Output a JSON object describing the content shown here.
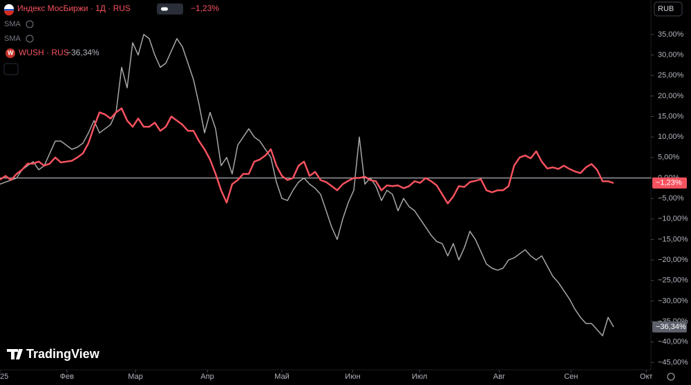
{
  "chart_data": {
    "type": "line",
    "title": "Индекс МосБиржи · 1Д · RUS",
    "indicators": [
      "SMA",
      "SMA"
    ],
    "currency": "RUB",
    "brand": "TradingView",
    "zero_line": true,
    "xlim": [
      0,
      117
    ],
    "xticks": [
      {
        "value": 0,
        "label": "25"
      },
      {
        "value": 12.1,
        "label": "Фев"
      },
      {
        "value": 24.5,
        "label": "Мар"
      },
      {
        "value": 37.5,
        "label": "Апр"
      },
      {
        "value": 51,
        "label": "Май"
      },
      {
        "value": 63.8,
        "label": "Июн"
      },
      {
        "value": 75.9,
        "label": "Июл"
      },
      {
        "value": 90.3,
        "label": "Авг"
      },
      {
        "value": 103.3,
        "label": "Сен"
      },
      {
        "value": 116.9,
        "label": "Окт"
      }
    ],
    "ylim": [
      -47.64,
      43.42
    ],
    "yticks": [
      {
        "value": 35,
        "label": "35,00%"
      },
      {
        "value": 30,
        "label": "30,00%"
      },
      {
        "value": 25,
        "label": "25,00%"
      },
      {
        "value": 20,
        "label": "20,00%"
      },
      {
        "value": 15,
        "label": "15,00%"
      },
      {
        "value": 10,
        "label": "10,00%"
      },
      {
        "value": 5,
        "label": "5,00%"
      },
      {
        "value": 0,
        "label": "0,00%"
      },
      {
        "value": -5,
        "label": "−5,00%"
      },
      {
        "value": -10,
        "label": "−10,00%"
      },
      {
        "value": -15,
        "label": "−15,00%"
      },
      {
        "value": -20,
        "label": "−20,00%"
      },
      {
        "value": -25,
        "label": "−25,00%"
      },
      {
        "value": -30,
        "label": "−30,00%"
      },
      {
        "value": -35,
        "label": "−35,00%"
      },
      {
        "value": -40,
        "label": "−40,00%"
      },
      {
        "value": -45,
        "label": "−45,00%"
      }
    ],
    "series": [
      {
        "name": "Индекс МосБиржи",
        "color": "#f7525f",
        "last_label": "−1,23%",
        "values": [
          -0.4,
          0.5,
          -0.5,
          1,
          2,
          3.5,
          3.5,
          4,
          3,
          3.5,
          5,
          3.8,
          4,
          4.2,
          5,
          6,
          8.5,
          12.5,
          16,
          15.5,
          14.5,
          16,
          17,
          14,
          12.5,
          14.5,
          12.5,
          12.5,
          13.5,
          11.5,
          12.5,
          15,
          14,
          13,
          11.5,
          11.5,
          9,
          7,
          4.5,
          1,
          -3,
          -6,
          -1.5,
          -0.5,
          1,
          1,
          4,
          4.5,
          5.5,
          7,
          3,
          0.5,
          -0.5,
          0,
          3,
          4,
          0.5,
          1.5,
          -0.5,
          -1,
          -2,
          -3,
          -1.5,
          -0.7,
          0,
          0,
          0.3,
          -0.5,
          -0.8,
          -3,
          -1.8,
          -2,
          -1.8,
          -2.5,
          -2,
          -0.8,
          -1.2,
          0,
          -0.8,
          -1.8,
          -4,
          -6.2,
          -4.5,
          -2,
          -2.2,
          -1,
          -0.7,
          -0.3,
          -3,
          -3.5,
          -3,
          -3,
          -2,
          3,
          5,
          5.5,
          4.8,
          6.5,
          4,
          2.3,
          2.6,
          2.2,
          3,
          2.2,
          1.6,
          1.2,
          2.6,
          3.4,
          2,
          -0.8,
          -0.8,
          -1.23
        ]
      },
      {
        "name": "WUSH · RUS",
        "color": "#a8a8a8",
        "last_label": "−36,34%",
        "values": [
          -1.5,
          -1,
          -0.5,
          0,
          2,
          3,
          4,
          2,
          3,
          6,
          9,
          9,
          8,
          7,
          7.5,
          8.5,
          11,
          14,
          11,
          12,
          13,
          16,
          27,
          22,
          33,
          30,
          35,
          34,
          30,
          27,
          28,
          31,
          34,
          32,
          28,
          24,
          18,
          11,
          16,
          12,
          3,
          5,
          1,
          8,
          10,
          12,
          10,
          9,
          7,
          5,
          -1,
          -5,
          -5.5,
          -3,
          -1,
          0,
          -1.5,
          -2.5,
          -4,
          -8,
          -12,
          -15,
          -10,
          -6,
          -3,
          10,
          -1.5,
          0,
          -2,
          -5.5,
          -3,
          -4,
          -8,
          -5,
          -7,
          -8,
          -10,
          -12,
          -14,
          -15.5,
          -16,
          -19,
          -16,
          -20,
          -17,
          -13,
          -15,
          -18,
          -21,
          -22,
          -22.5,
          -22,
          -20,
          -19.5,
          -18.5,
          -17.5,
          -19,
          -20,
          -19,
          -21.5,
          -24,
          -25.5,
          -27.5,
          -29.5,
          -32,
          -34,
          -35.5,
          -35.5,
          -37,
          -38.5,
          -34,
          -36.34
        ]
      }
    ]
  }
}
